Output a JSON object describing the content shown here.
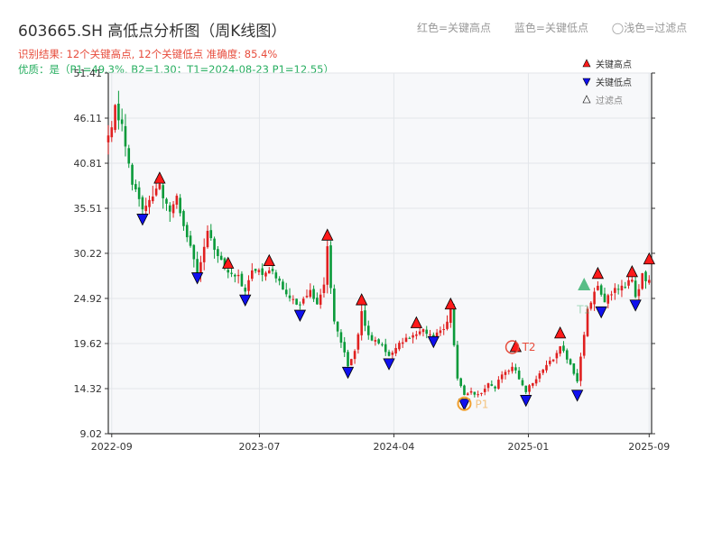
{
  "title": "603665.SH 高低点分析图（周K线图）",
  "info": {
    "result": "识别结果: 12个关键高点, 12个关键低点  准确度: 85.4%",
    "quality": "优质：是（P1=49.3%, B2=1.30；T1=2024-08-23 P1=12.55）"
  },
  "top_legend": [
    "红色=关键高点",
    "蓝色=关键低点",
    "◯浅色=过滤点"
  ],
  "colors": {
    "up": "#e02020",
    "down": "#0a9a3a",
    "high_marker": "#ff1a1a",
    "low_marker": "#1010ee",
    "filtered_marker": "#3cb371",
    "annotation_orange": "#f0a030",
    "annotation_red": "#e74c3c",
    "grid": "#e3e6ea",
    "plot_bg": "#f7f8fa"
  },
  "chart_data": {
    "type": "candlestick",
    "y_ticks": [
      "9.02",
      "14.32",
      "19.62",
      "24.92",
      "30.22",
      "35.51",
      "40.81",
      "46.11",
      "51.41"
    ],
    "ylim": [
      9.02,
      51.41
    ],
    "x_ticks": [
      {
        "label": "2022-09",
        "date": "2022-09-02"
      },
      {
        "label": "2023-07",
        "date": "2023-07-01"
      },
      {
        "label": "2024-04",
        "date": "2024-04-01"
      },
      {
        "label": "2025-01",
        "date": "2025-01-01"
      },
      {
        "label": "2025-09",
        "date": "2025-09-05"
      }
    ],
    "xlim": [
      "2022-08-26",
      "2025-09-10"
    ],
    "legend": {
      "position": "top-right",
      "entries": [
        "关键高点",
        "关键低点",
        "过滤点"
      ]
    },
    "key_highs": [
      {
        "date": "2022-12-09",
        "value": 39.0
      },
      {
        "date": "2023-04-28",
        "value": 29.0
      },
      {
        "date": "2023-07-21",
        "value": 29.3
      },
      {
        "date": "2023-11-17",
        "value": 32.3
      },
      {
        "date": "2024-01-26",
        "value": 24.7
      },
      {
        "date": "2024-05-17",
        "value": 22.0
      },
      {
        "date": "2024-07-26",
        "value": 24.2
      },
      {
        "date": "2024-12-06",
        "value": 19.2
      },
      {
        "date": "2025-03-07",
        "value": 20.8
      },
      {
        "date": "2025-05-23",
        "value": 27.8
      },
      {
        "date": "2025-08-01",
        "value": 28.0
      },
      {
        "date": "2025-09-05",
        "value": 29.5
      }
    ],
    "key_lows": [
      {
        "date": "2022-11-04",
        "value": 34.3
      },
      {
        "date": "2023-02-24",
        "value": 27.4
      },
      {
        "date": "2023-06-02",
        "value": 24.8
      },
      {
        "date": "2023-09-22",
        "value": 23.0
      },
      {
        "date": "2023-12-29",
        "value": 16.3
      },
      {
        "date": "2024-03-22",
        "value": 17.3
      },
      {
        "date": "2024-06-21",
        "value": 19.9
      },
      {
        "date": "2024-08-23",
        "value": 12.55
      },
      {
        "date": "2024-12-27",
        "value": 13.0
      },
      {
        "date": "2025-04-11",
        "value": 13.6
      },
      {
        "date": "2025-05-30",
        "value": 23.4
      },
      {
        "date": "2025-08-08",
        "value": 24.2
      }
    ],
    "filtered_points": [
      {
        "date": "2025-04-25",
        "value": 26.5
      }
    ],
    "annotations": [
      {
        "label": "P1",
        "date": "2024-08-23",
        "value": 12.55,
        "color": "orange"
      },
      {
        "label": "T2",
        "date": "2024-11-29",
        "value": 19.2,
        "color": "red"
      },
      {
        "label": "T1",
        "date": "2025-04-25",
        "value": 24.0,
        "color": "green"
      }
    ],
    "anchors": [
      [
        "2022-08-26",
        43.5
      ],
      [
        "2022-09-09",
        47.5
      ],
      [
        "2022-09-23",
        45.0
      ],
      [
        "2022-10-14",
        38.5
      ],
      [
        "2022-11-04",
        35.0
      ],
      [
        "2022-11-25",
        37.0
      ],
      [
        "2022-12-09",
        38.0
      ],
      [
        "2022-12-30",
        35.5
      ],
      [
        "2023-01-13",
        36.5
      ],
      [
        "2023-02-03",
        32.0
      ],
      [
        "2023-02-24",
        28.0
      ],
      [
        "2023-03-17",
        32.5
      ],
      [
        "2023-04-07",
        30.0
      ],
      [
        "2023-04-28",
        28.2
      ],
      [
        "2023-05-19",
        27.5
      ],
      [
        "2023-06-02",
        25.8
      ],
      [
        "2023-06-16",
        27.8
      ],
      [
        "2023-07-21",
        28.2
      ],
      [
        "2023-08-11",
        26.8
      ],
      [
        "2023-09-01",
        25.0
      ],
      [
        "2023-09-22",
        24.0
      ],
      [
        "2023-10-13",
        26.0
      ],
      [
        "2023-10-27",
        24.2
      ],
      [
        "2023-11-10",
        26.5
      ],
      [
        "2023-11-17",
        31.0
      ],
      [
        "2023-12-01",
        22.0
      ],
      [
        "2023-12-15",
        19.5
      ],
      [
        "2023-12-29",
        17.2
      ],
      [
        "2024-01-12",
        18.5
      ],
      [
        "2024-01-26",
        23.5
      ],
      [
        "2024-02-09",
        20.5
      ],
      [
        "2024-02-23",
        20.0
      ],
      [
        "2024-03-08",
        19.5
      ],
      [
        "2024-03-22",
        18.0
      ],
      [
        "2024-04-12",
        19.5
      ],
      [
        "2024-05-17",
        21.0
      ],
      [
        "2024-06-07",
        21.0
      ],
      [
        "2024-06-21",
        20.5
      ],
      [
        "2024-07-12",
        21.5
      ],
      [
        "2024-07-26",
        23.5
      ],
      [
        "2024-08-09",
        15.5
      ],
      [
        "2024-08-23",
        13.5
      ],
      [
        "2024-09-06",
        14.0
      ],
      [
        "2024-09-20",
        13.5
      ],
      [
        "2024-10-11",
        15.0
      ],
      [
        "2024-10-25",
        14.5
      ],
      [
        "2024-11-08",
        16.0
      ],
      [
        "2024-11-29",
        17.0
      ],
      [
        "2024-12-13",
        15.5
      ],
      [
        "2024-12-27",
        14.0
      ],
      [
        "2025-01-10",
        15.0
      ],
      [
        "2025-01-31",
        16.5
      ],
      [
        "2025-02-21",
        18.0
      ],
      [
        "2025-03-07",
        19.5
      ],
      [
        "2025-03-21",
        18.0
      ],
      [
        "2025-04-11",
        15.0
      ],
      [
        "2025-04-18",
        18.0
      ],
      [
        "2025-05-02",
        23.5
      ],
      [
        "2025-05-16",
        25.5
      ],
      [
        "2025-05-23",
        26.8
      ],
      [
        "2025-06-06",
        24.5
      ],
      [
        "2025-06-27",
        26.0
      ],
      [
        "2025-07-18",
        26.5
      ],
      [
        "2025-08-01",
        27.0
      ],
      [
        "2025-08-08",
        25.0
      ],
      [
        "2025-08-22",
        27.5
      ],
      [
        "2025-09-05",
        27.0
      ]
    ]
  }
}
